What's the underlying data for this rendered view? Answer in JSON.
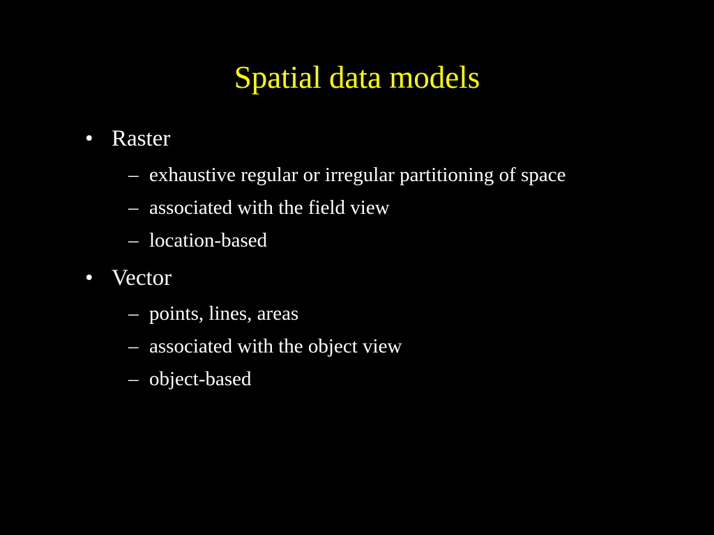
{
  "slide": {
    "title": "Spatial data models",
    "background_color": "#000000",
    "title_color": "#ffff00",
    "body_color": "#ffffff",
    "title_fontsize": 45,
    "level1_fontsize": 33,
    "level2_fontsize": 29,
    "font_family": "Times New Roman",
    "bullets": [
      {
        "label": "Raster",
        "sub": [
          "exhaustive regular or irregular partitioning of space",
          "associated with the field view",
          "location-based"
        ]
      },
      {
        "label": "Vector",
        "sub": [
          "points, lines, areas",
          "associated with the object view",
          "object-based"
        ]
      }
    ]
  }
}
